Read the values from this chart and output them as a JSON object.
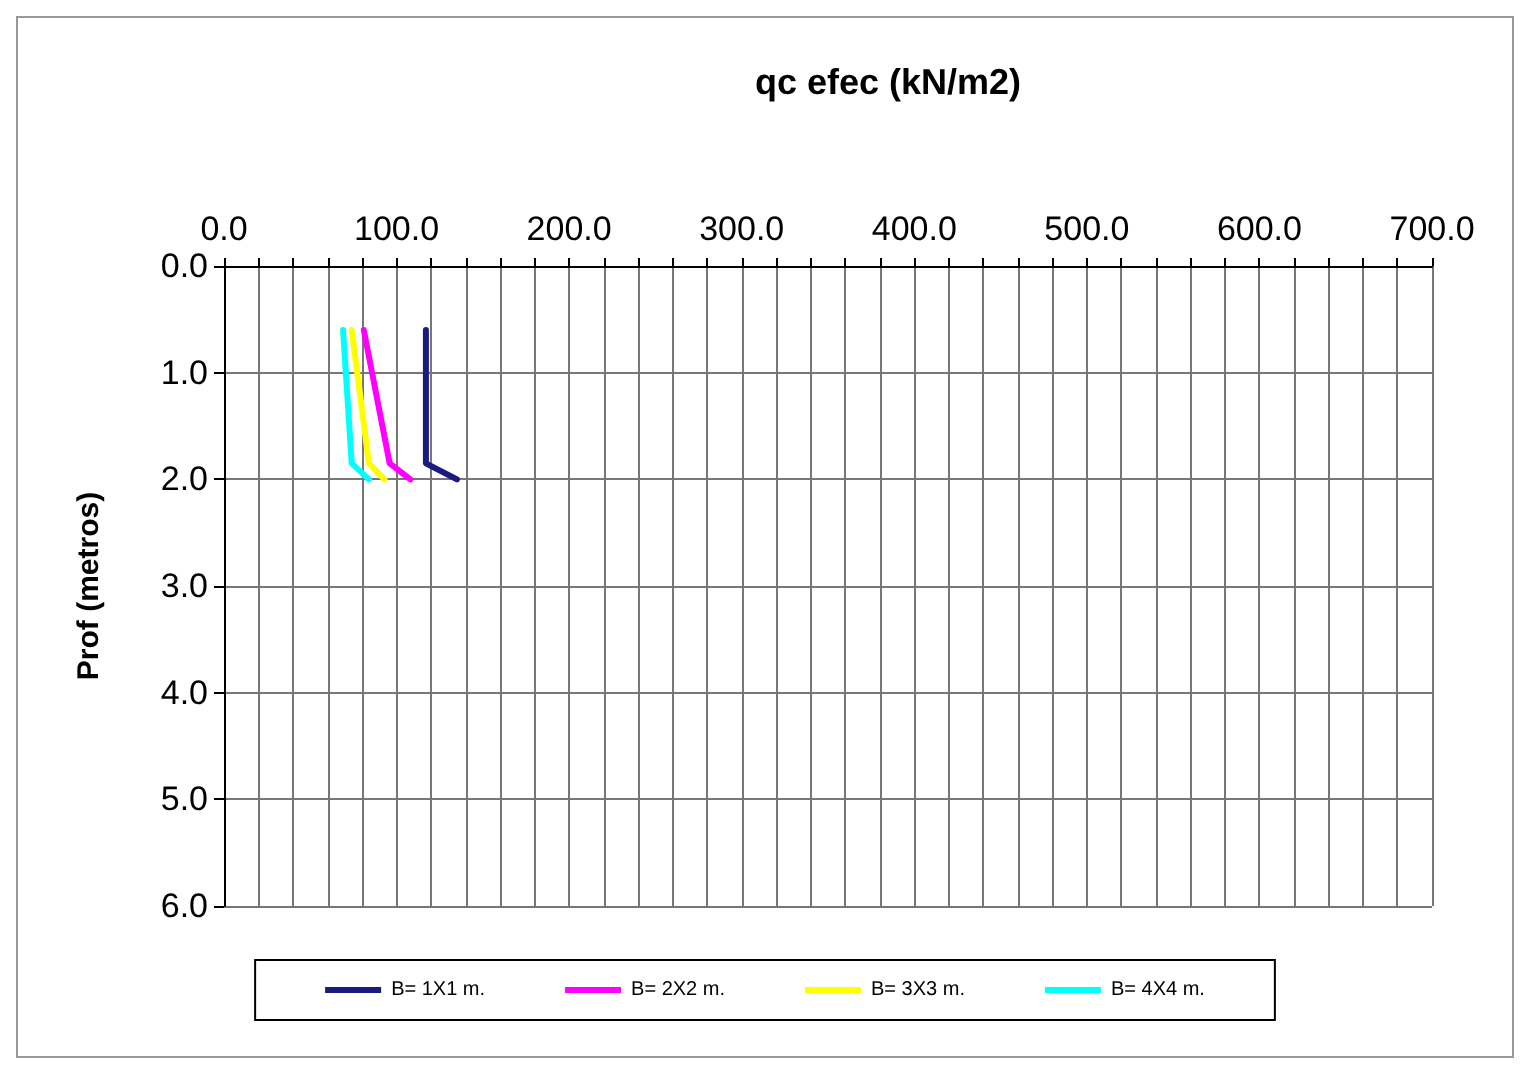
{
  "chart_data": {
    "type": "line",
    "xlabel": "qc efec (kN/m2)",
    "ylabel": "Prof (metros)",
    "xlim": [
      0,
      700
    ],
    "xticks": [
      {
        "value": 0,
        "label": "0.0"
      },
      {
        "value": 100,
        "label": "100.0"
      },
      {
        "value": 200,
        "label": "200.0"
      },
      {
        "value": 300,
        "label": "300.0"
      },
      {
        "value": 400,
        "label": "400.0"
      },
      {
        "value": 500,
        "label": "500.0"
      },
      {
        "value": 600,
        "label": "600.0"
      },
      {
        "value": 700,
        "label": "700.0"
      }
    ],
    "ylim": [
      6,
      0
    ],
    "yticks": [
      {
        "value": 0,
        "label": "0.0"
      },
      {
        "value": 1,
        "label": "1.0"
      },
      {
        "value": 2,
        "label": "2.0"
      },
      {
        "value": 3,
        "label": "3.0"
      },
      {
        "value": 4,
        "label": "4.0"
      },
      {
        "value": 5,
        "label": "5.0"
      },
      {
        "value": 6,
        "label": "6.0"
      }
    ],
    "grid": true,
    "legend": "bottom",
    "marker": "none",
    "line_style": "solid",
    "series": [
      {
        "name": "B= 1X1 m.",
        "color": "#1a1a80",
        "x": [
          117,
          117,
          135
        ],
        "values": [
          0.6,
          1.85,
          2.0
        ]
      },
      {
        "name": "B= 2X2 m.",
        "color": "#ff00ff",
        "x": [
          81,
          96,
          108
        ],
        "values": [
          0.6,
          1.85,
          2.0
        ]
      },
      {
        "name": "B= 3X3 m.",
        "color": "#ffff00",
        "x": [
          74,
          84,
          93
        ],
        "values": [
          0.6,
          1.85,
          2.0
        ]
      },
      {
        "name": "B= 4X4 m.",
        "color": "#00ffff",
        "x": [
          69,
          74,
          84
        ],
        "values": [
          0.6,
          1.85,
          2.0
        ]
      }
    ]
  }
}
